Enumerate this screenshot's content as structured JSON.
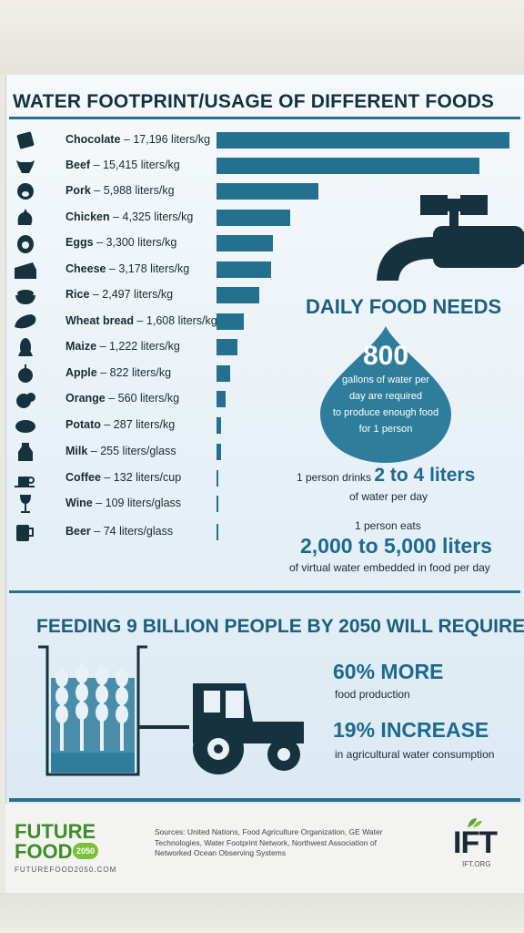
{
  "title": "WATER FOOTPRINT/USAGE OF DIFFERENT FOODS",
  "foods": [
    {
      "name": "Chocolate",
      "amount": "17,196 liters/kg",
      "icon": "chocolate-icon"
    },
    {
      "name": "Beef",
      "amount": "15,415 liters/kg",
      "icon": "cow-icon"
    },
    {
      "name": "Pork",
      "amount": "5,988 liters/kg",
      "icon": "pig-icon"
    },
    {
      "name": "Chicken",
      "amount": "4,325 liters/kg",
      "icon": "chicken-icon"
    },
    {
      "name": "Eggs",
      "amount": "3,300 liters/kg",
      "icon": "egg-icon"
    },
    {
      "name": "Cheese",
      "amount": "3,178 liters/kg",
      "icon": "cheese-icon"
    },
    {
      "name": "Rice",
      "amount": "2,497 liters/kg",
      "icon": "rice-bowl-icon"
    },
    {
      "name": "Wheat bread",
      "amount": "1,608 liters/kg",
      "icon": "bread-icon"
    },
    {
      "name": "Maize",
      "amount": "1,222 liters/kg",
      "icon": "corn-icon"
    },
    {
      "name": "Apple",
      "amount": "822 liters/kg",
      "icon": "apple-icon"
    },
    {
      "name": "Orange",
      "amount": "560 liters/kg",
      "icon": "orange-icon"
    },
    {
      "name": "Potato",
      "amount": "287 liters/kg",
      "icon": "potato-icon"
    },
    {
      "name": "Milk",
      "amount": "255 liters/glass",
      "icon": "milk-bottle-icon"
    },
    {
      "name": "Coffee",
      "amount": "132 liters/cup",
      "icon": "coffee-cup-icon"
    },
    {
      "name": "Wine",
      "amount": "109 liters/glass",
      "icon": "wine-glass-icon"
    },
    {
      "name": "Beer",
      "amount": "74 liters/glass",
      "icon": "beer-mug-icon"
    }
  ],
  "chart_data": {
    "type": "bar",
    "orientation": "horizontal",
    "categories": [
      "Chocolate",
      "Beef",
      "Pork",
      "Chicken",
      "Eggs",
      "Cheese",
      "Rice",
      "Wheat bread",
      "Maize",
      "Apple",
      "Orange",
      "Potato",
      "Milk",
      "Coffee",
      "Wine",
      "Beer"
    ],
    "values": [
      17196,
      15415,
      5988,
      4325,
      3300,
      3178,
      2497,
      1608,
      1222,
      822,
      560,
      287,
      255,
      132,
      109,
      74
    ],
    "units": [
      "liters/kg",
      "liters/kg",
      "liters/kg",
      "liters/kg",
      "liters/kg",
      "liters/kg",
      "liters/kg",
      "liters/kg",
      "liters/kg",
      "liters/kg",
      "liters/kg",
      "liters/kg",
      "liters/glass",
      "liters/cup",
      "liters/glass",
      "liters/glass"
    ],
    "title": "WATER FOOTPRINT/USAGE OF DIFFERENT FOODS",
    "xlim": [
      0,
      17196
    ],
    "grid": false
  },
  "daily": {
    "title": "DAILY FOOD NEEDS",
    "drop_number": "800",
    "drop_text_1": "gallons of water per",
    "drop_text_2": "day are required",
    "drop_text_3": "to produce enough food",
    "drop_text_4": "for 1 person",
    "drinks_prefix": "1 person drinks",
    "drinks_big": "2 to 4 liters",
    "drinks_sub": "of water per day",
    "eats_prefix": "1 person eats",
    "eats_big": "2,000 to 5,000 liters",
    "eats_sub": "of virtual water embedded in food per day"
  },
  "feeding": {
    "title": "FEEDING 9 BILLION PEOPLE BY 2050 WILL REQUIRE:",
    "stat1_big": "60% MORE",
    "stat1_sub": "food production",
    "stat2_big": "19% INCREASE",
    "stat2_sub": "in agricultural water consumption"
  },
  "footer": {
    "logo_future": "FUTURE",
    "logo_food": "FOOD",
    "logo_2050": "2050",
    "logo_url": "FUTUREFOOD2050.COM",
    "sources": "Sources: United Nations, Food Agriculture Organization, GE Water Technologies, Water Footprint Network, Northwest Association of Networked Ocean Observing Systems",
    "ift": "IFT",
    "ift_url": "IFT.ORG"
  },
  "colors": {
    "bar": "#23708f",
    "heading": "#1d5f80",
    "accent": "#1d6a8e",
    "brand_green": "#3f8c2a"
  }
}
